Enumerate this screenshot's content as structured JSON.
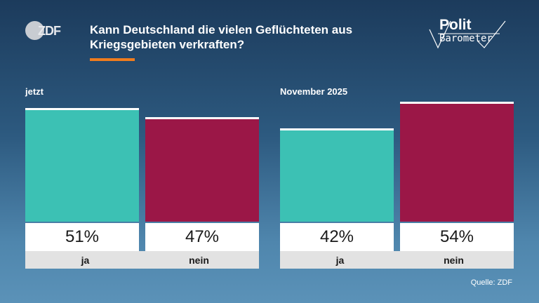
{
  "header": {
    "logo_text": "ZDF",
    "title": "Kann Deutschland die vielen Geflüchteten aus Kriegsgebieten verkraften?",
    "brand_top": "Polit",
    "brand_bottom": "Barometer"
  },
  "colors": {
    "ja": "#3cc1b4",
    "nein": "#9b1747",
    "accent": "#f07c1e"
  },
  "chart_data": {
    "type": "bar",
    "title": "Kann Deutschland die vielen Geflüchteten aus Kriegsgebieten verkraften?",
    "unit": "%",
    "groups": [
      {
        "label": "jetzt",
        "bars": [
          {
            "category": "ja",
            "value": 51,
            "value_label": "51%"
          },
          {
            "category": "nein",
            "value": 47,
            "value_label": "47%"
          }
        ]
      },
      {
        "label": "November 2025",
        "bars": [
          {
            "category": "ja",
            "value": 42,
            "value_label": "42%"
          },
          {
            "category": "nein",
            "value": 54,
            "value_label": "54%"
          }
        ]
      }
    ]
  },
  "footer": {
    "source": "Quelle: ZDF"
  }
}
